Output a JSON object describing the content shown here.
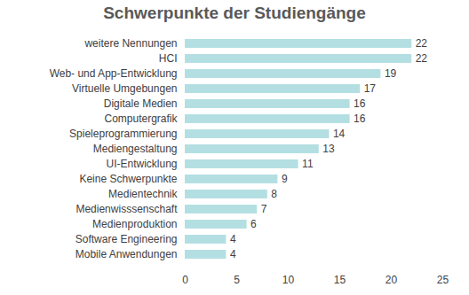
{
  "chart_data": {
    "type": "bar",
    "title": "Schwerpunkte der Studiengänge",
    "categories": [
      "weitere Nennungen",
      "HCI",
      "Web- und App-Entwicklung",
      "Virtuelle Umgebungen",
      "Digitale Medien",
      "Computergrafik",
      "Spieleprogrammierung",
      "Mediengestaltung",
      "UI-Entwicklung",
      "Keine Schwerpunkte",
      "Medientechnik",
      "Medienwisssenschaft",
      "Medienproduktion",
      "Software Engineering",
      "Mobile Anwendungen"
    ],
    "values": [
      22,
      22,
      19,
      17,
      16,
      16,
      14,
      13,
      11,
      9,
      8,
      7,
      6,
      4,
      4
    ],
    "color": "#b4dfe2",
    "orientation": "horizontal",
    "xlim": [
      0,
      25
    ],
    "xticks": [
      0,
      5,
      10,
      15,
      20,
      25
    ],
    "data_labels": true,
    "grid": false
  }
}
